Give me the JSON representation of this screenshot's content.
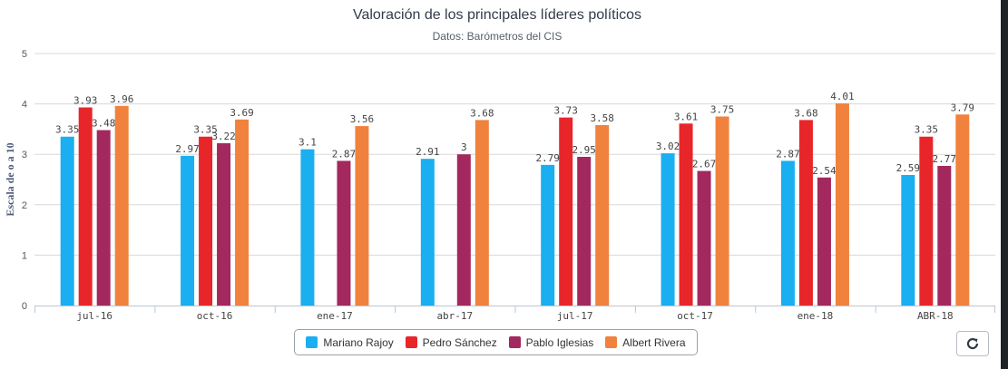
{
  "chart_data": {
    "type": "bar",
    "title": "Valoración de los principales líderes políticos",
    "subtitle": "Datos: Barómetros del CIS",
    "ylabel": "Escala de o a 10",
    "xlabel": "",
    "ylim": [
      0,
      5
    ],
    "yticks": [
      "0",
      "1",
      "2",
      "3",
      "4",
      "5"
    ],
    "grid": true,
    "legend_position": "bottom",
    "categories": [
      "jul-16",
      "oct-16",
      "ene-17",
      "abr-17",
      "jul-17",
      "oct-17",
      "ene-18",
      "ABR-18"
    ],
    "series": [
      {
        "name": "Mariano Rajoy",
        "color": "#1aaff0",
        "values": [
          3.35,
          2.97,
          3.1,
          2.91,
          2.79,
          3.02,
          2.87,
          2.59
        ],
        "labels": [
          "3.35",
          "2.97",
          "3.1",
          "2.91",
          "2.79",
          "3.02",
          "2.87",
          "2.59"
        ]
      },
      {
        "name": "Pedro Sánchez",
        "color": "#e8262a",
        "values": [
          3.93,
          3.35,
          null,
          null,
          3.73,
          3.61,
          3.68,
          3.35
        ],
        "labels": [
          "3.93",
          "3.35",
          "",
          "",
          "3.73",
          "3.61",
          "3.68",
          "3.35"
        ]
      },
      {
        "name": "Pablo Iglesias",
        "color": "#a3285d",
        "values": [
          3.48,
          3.22,
          2.87,
          3,
          2.95,
          2.67,
          2.54,
          2.77
        ],
        "labels": [
          "3.48",
          "3.22",
          "2.87",
          "3",
          "2.95",
          "2.67",
          "2.54",
          "2.77"
        ]
      },
      {
        "name": "Albert Rivera",
        "color": "#f0823e",
        "values": [
          3.96,
          3.69,
          3.56,
          3.68,
          3.58,
          3.75,
          4.01,
          3.79
        ],
        "labels": [
          "3.96",
          "3.69",
          "3.56",
          "3.68",
          "3.58",
          "3.75",
          "4.01",
          "3.79"
        ]
      }
    ]
  },
  "controls": {
    "refresh_icon": "refresh-icon"
  }
}
